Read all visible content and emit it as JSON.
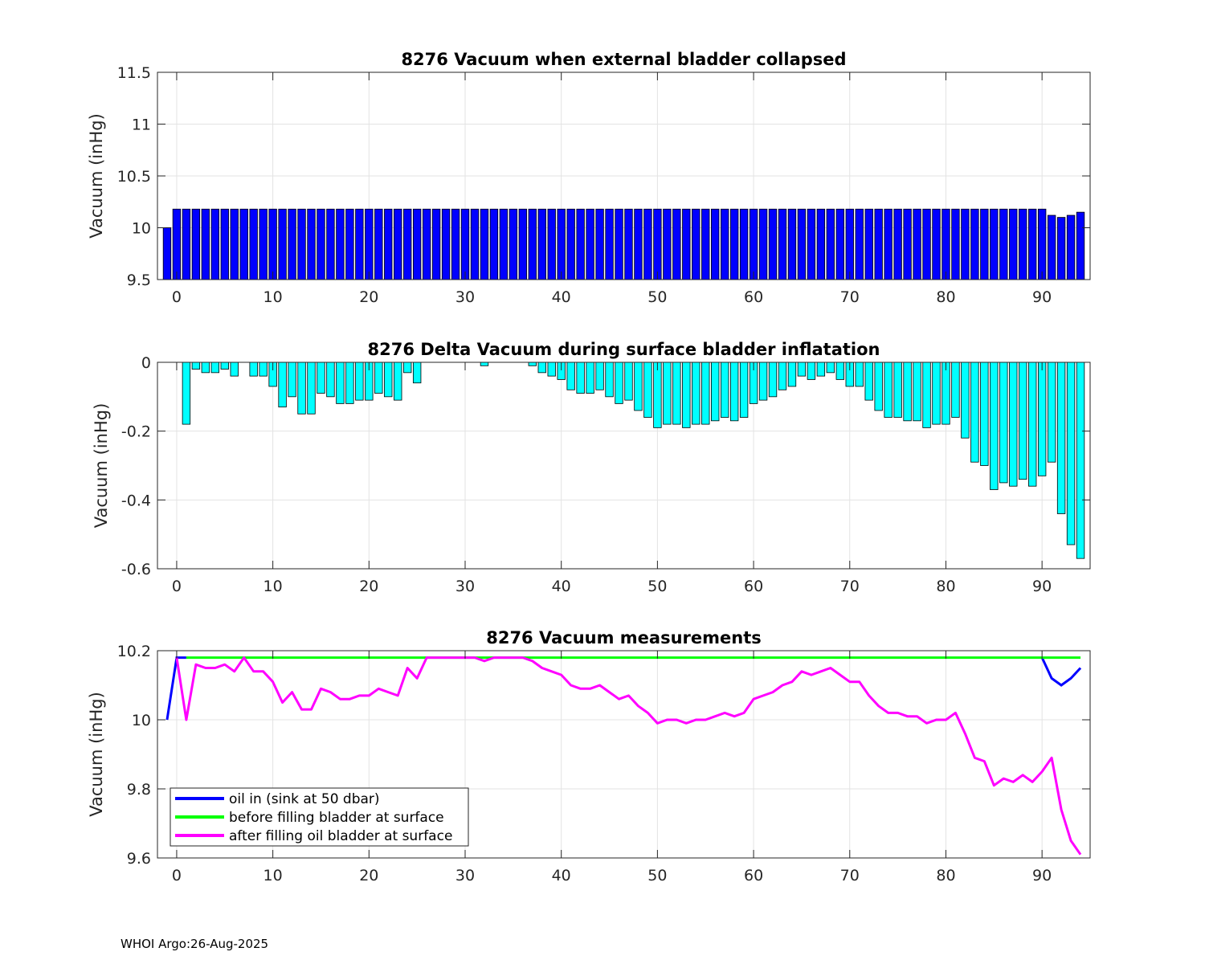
{
  "footer": "WHOI Argo:26-Aug-2025",
  "colors": {
    "bar1": "#0000FF",
    "bar2": "#00FFFF",
    "oil_in": "#0000FF",
    "before": "#00FF00",
    "after": "#FF00FF"
  },
  "chart_data": [
    {
      "type": "bar",
      "title": "8276 Vacuum when external bladder collapsed",
      "ylabel": "Vacuum (inHg)",
      "xlim": [
        -2,
        95
      ],
      "ylim": [
        9.5,
        11.5
      ],
      "xticks": [
        "0",
        "10",
        "20",
        "30",
        "40",
        "50",
        "60",
        "70",
        "80",
        "90"
      ],
      "yticks": [
        "9.5",
        "10",
        "10.5",
        "11",
        "11.5"
      ],
      "x": [
        -1,
        0,
        1,
        2,
        3,
        4,
        5,
        6,
        7,
        8,
        9,
        10,
        11,
        12,
        13,
        14,
        15,
        16,
        17,
        18,
        19,
        20,
        21,
        22,
        23,
        24,
        25,
        26,
        27,
        28,
        29,
        30,
        31,
        32,
        33,
        34,
        35,
        36,
        37,
        38,
        39,
        40,
        41,
        42,
        43,
        44,
        45,
        46,
        47,
        48,
        49,
        50,
        51,
        52,
        53,
        54,
        55,
        56,
        57,
        58,
        59,
        60,
        61,
        62,
        63,
        64,
        65,
        66,
        67,
        68,
        69,
        70,
        71,
        72,
        73,
        74,
        75,
        76,
        77,
        78,
        79,
        80,
        81,
        82,
        83,
        84,
        85,
        86,
        87,
        88,
        89,
        90,
        91,
        92,
        93,
        94
      ],
      "values": [
        10.0,
        10.18,
        10.18,
        10.18,
        10.18,
        10.18,
        10.18,
        10.18,
        10.18,
        10.18,
        10.18,
        10.18,
        10.18,
        10.18,
        10.18,
        10.18,
        10.18,
        10.18,
        10.18,
        10.18,
        10.18,
        10.18,
        10.18,
        10.18,
        10.18,
        10.18,
        10.18,
        10.18,
        10.18,
        10.18,
        10.18,
        10.18,
        10.18,
        10.18,
        10.18,
        10.18,
        10.18,
        10.18,
        10.18,
        10.18,
        10.18,
        10.18,
        10.18,
        10.18,
        10.18,
        10.18,
        10.18,
        10.18,
        10.18,
        10.18,
        10.18,
        10.18,
        10.18,
        10.18,
        10.18,
        10.18,
        10.18,
        10.18,
        10.18,
        10.18,
        10.18,
        10.18,
        10.18,
        10.18,
        10.18,
        10.18,
        10.18,
        10.18,
        10.18,
        10.18,
        10.18,
        10.18,
        10.18,
        10.18,
        10.18,
        10.18,
        10.18,
        10.18,
        10.18,
        10.18,
        10.18,
        10.18,
        10.18,
        10.18,
        10.18,
        10.18,
        10.18,
        10.18,
        10.18,
        10.18,
        10.18,
        10.18,
        10.12,
        10.1,
        10.12,
        10.15
      ]
    },
    {
      "type": "bar",
      "title": "8276 Delta Vacuum during surface bladder inflatation",
      "ylabel": "Vacuum (inHg)",
      "xlim": [
        -2,
        95
      ],
      "ylim": [
        -0.6,
        0
      ],
      "xticks": [
        "0",
        "10",
        "20",
        "30",
        "40",
        "50",
        "60",
        "70",
        "80",
        "90"
      ],
      "yticks": [
        "-0.6",
        "-0.4",
        "-0.2",
        "0"
      ],
      "x": [
        1,
        2,
        3,
        4,
        5,
        6,
        7,
        8,
        9,
        10,
        11,
        12,
        13,
        14,
        15,
        16,
        17,
        18,
        19,
        20,
        21,
        22,
        23,
        24,
        25,
        26,
        27,
        28,
        29,
        30,
        31,
        32,
        33,
        34,
        35,
        36,
        37,
        38,
        39,
        40,
        41,
        42,
        43,
        44,
        45,
        46,
        47,
        48,
        49,
        50,
        51,
        52,
        53,
        54,
        55,
        56,
        57,
        58,
        59,
        60,
        61,
        62,
        63,
        64,
        65,
        66,
        67,
        68,
        69,
        70,
        71,
        72,
        73,
        74,
        75,
        76,
        77,
        78,
        79,
        80,
        81,
        82,
        83,
        84,
        85,
        86,
        87,
        88,
        89,
        90,
        91,
        92,
        93,
        94
      ],
      "values": [
        -0.18,
        -0.02,
        -0.03,
        -0.03,
        -0.02,
        -0.04,
        0,
        -0.04,
        -0.04,
        -0.07,
        -0.13,
        -0.1,
        -0.15,
        -0.15,
        -0.09,
        -0.1,
        -0.12,
        -0.12,
        -0.11,
        -0.11,
        -0.09,
        -0.1,
        -0.11,
        -0.03,
        -0.06,
        0,
        0,
        0,
        0,
        0,
        0,
        -0.01,
        0,
        0,
        0,
        0,
        -0.01,
        -0.03,
        -0.04,
        -0.05,
        -0.08,
        -0.09,
        -0.09,
        -0.08,
        -0.1,
        -0.12,
        -0.11,
        -0.14,
        -0.16,
        -0.19,
        -0.18,
        -0.18,
        -0.19,
        -0.18,
        -0.18,
        -0.17,
        -0.16,
        -0.17,
        -0.16,
        -0.12,
        -0.11,
        -0.1,
        -0.08,
        -0.07,
        -0.04,
        -0.05,
        -0.04,
        -0.03,
        -0.05,
        -0.07,
        -0.07,
        -0.11,
        -0.14,
        -0.16,
        -0.16,
        -0.17,
        -0.17,
        -0.19,
        -0.18,
        -0.18,
        -0.16,
        -0.22,
        -0.29,
        -0.3,
        -0.37,
        -0.35,
        -0.36,
        -0.34,
        -0.36,
        -0.33,
        -0.29,
        -0.44,
        -0.53,
        -0.57
      ]
    },
    {
      "type": "line",
      "title": "8276 Vacuum measurements",
      "ylabel": "Vacuum (inHg)",
      "xlim": [
        -2,
        95
      ],
      "ylim": [
        9.6,
        10.2
      ],
      "xticks": [
        "0",
        "10",
        "20",
        "30",
        "40",
        "50",
        "60",
        "70",
        "80",
        "90"
      ],
      "yticks": [
        "9.6",
        "9.8",
        "10",
        "10.2"
      ],
      "legend_position": "bottom-left",
      "series": [
        {
          "name": "oil in (sink at 50 dbar)",
          "color": "#0000FF",
          "x": [
            -1,
            0,
            1,
            90,
            91,
            92,
            93,
            94
          ],
          "values": [
            10.0,
            10.18,
            10.18,
            10.18,
            10.12,
            10.1,
            10.12,
            10.15
          ]
        },
        {
          "name": "before filling bladder at surface",
          "color": "#00FF00",
          "x": [
            1,
            94
          ],
          "values": [
            10.18,
            10.18
          ]
        },
        {
          "name": "after filling oil bladder at surface",
          "color": "#FF00FF",
          "x": [
            0,
            1,
            2,
            3,
            4,
            5,
            6,
            7,
            8,
            9,
            10,
            11,
            12,
            13,
            14,
            15,
            16,
            17,
            18,
            19,
            20,
            21,
            22,
            23,
            24,
            25,
            26,
            27,
            28,
            29,
            30,
            31,
            32,
            33,
            34,
            35,
            36,
            37,
            38,
            39,
            40,
            41,
            42,
            43,
            44,
            45,
            46,
            47,
            48,
            49,
            50,
            51,
            52,
            53,
            54,
            55,
            56,
            57,
            58,
            59,
            60,
            61,
            62,
            63,
            64,
            65,
            66,
            67,
            68,
            69,
            70,
            71,
            72,
            73,
            74,
            75,
            76,
            77,
            78,
            79,
            80,
            81,
            82,
            83,
            84,
            85,
            86,
            87,
            88,
            89,
            90,
            91,
            92,
            93,
            94
          ],
          "values": [
            10.18,
            10.0,
            10.16,
            10.15,
            10.15,
            10.16,
            10.14,
            10.18,
            10.14,
            10.14,
            10.11,
            10.05,
            10.08,
            10.03,
            10.03,
            10.09,
            10.08,
            10.06,
            10.06,
            10.07,
            10.07,
            10.09,
            10.08,
            10.07,
            10.15,
            10.12,
            10.18,
            10.18,
            10.18,
            10.18,
            10.18,
            10.18,
            10.17,
            10.18,
            10.18,
            10.18,
            10.18,
            10.17,
            10.15,
            10.14,
            10.13,
            10.1,
            10.09,
            10.09,
            10.1,
            10.08,
            10.06,
            10.07,
            10.04,
            10.02,
            9.99,
            10.0,
            10.0,
            9.99,
            10.0,
            10.0,
            10.01,
            10.02,
            10.01,
            10.02,
            10.06,
            10.07,
            10.08,
            10.1,
            10.11,
            10.14,
            10.13,
            10.14,
            10.15,
            10.13,
            10.11,
            10.11,
            10.07,
            10.04,
            10.02,
            10.02,
            10.01,
            10.01,
            9.99,
            10.0,
            10.0,
            10.02,
            9.96,
            9.89,
            9.88,
            9.81,
            9.83,
            9.82,
            9.84,
            9.82,
            9.85,
            9.89,
            9.74,
            9.65,
            9.61
          ]
        }
      ]
    }
  ]
}
